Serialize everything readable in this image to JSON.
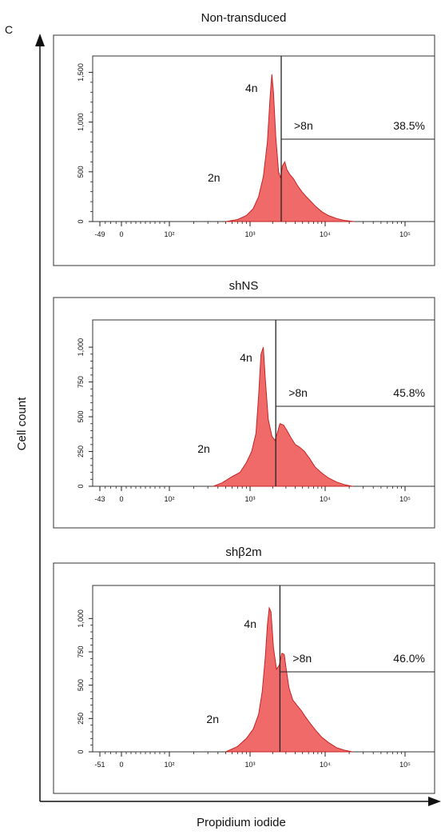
{
  "panel_letter": "C",
  "y_axis_title": "Cell count",
  "x_axis_title": "Propidium iodide",
  "colors": {
    "fill": "#f06a6a",
    "stroke": "#c42424",
    "frame": "#333333"
  },
  "chart_data": [
    {
      "type": "area",
      "title": "Non-transduced",
      "x_scale": "logicle",
      "x_tick_labels": [
        "-49",
        "0",
        "10²",
        "10³",
        "10⁴",
        "10⁵"
      ],
      "y_tick_labels": [
        "0",
        "500",
        "1,000",
        "1,500"
      ],
      "ylim": [
        0,
        1600
      ],
      "annotations": {
        "peak_2n": "2n",
        "peak_4n": "4n",
        "gate_label": ">8n",
        "gate_percent": "38.5%"
      },
      "gate_min_x": 2600,
      "x": [
        500,
        700,
        900,
        1100,
        1300,
        1500,
        1700,
        1850,
        1950,
        2050,
        2200,
        2400,
        2550,
        2700,
        2900,
        3100,
        3400,
        3800,
        4300,
        4900,
        5600,
        6500,
        7500,
        9000,
        11000,
        14000,
        18000,
        23000
      ],
      "y": [
        0,
        20,
        60,
        130,
        250,
        450,
        800,
        1250,
        1480,
        1300,
        850,
        500,
        440,
        560,
        600,
        520,
        470,
        430,
        360,
        300,
        250,
        200,
        150,
        100,
        60,
        30,
        10,
        0
      ]
    },
    {
      "type": "area",
      "title": "shNS",
      "x_scale": "logicle",
      "x_tick_labels": [
        "-43",
        "0",
        "10²",
        "10³",
        "10⁴",
        "10⁵"
      ],
      "y_tick_labels": [
        "0",
        "250",
        "500",
        "750",
        "1,000"
      ],
      "ylim": [
        0,
        1150
      ],
      "annotations": {
        "peak_2n": "2n",
        "peak_4n": "4n",
        "gate_label": ">8n",
        "gate_percent": "45.8%"
      },
      "gate_min_x": 2200,
      "x": [
        350,
        450,
        600,
        750,
        900,
        1050,
        1200,
        1300,
        1400,
        1500,
        1600,
        1750,
        1950,
        2150,
        2300,
        2500,
        2800,
        3100,
        3500,
        4000,
        4600,
        5300,
        6200,
        7300,
        8800,
        11000,
        14000,
        18000,
        22000
      ],
      "y": [
        0,
        25,
        70,
        100,
        170,
        250,
        380,
        650,
        950,
        1000,
        760,
        480,
        360,
        330,
        380,
        450,
        440,
        400,
        350,
        300,
        280,
        250,
        200,
        140,
        100,
        60,
        30,
        10,
        0
      ]
    },
    {
      "type": "area",
      "title": "shβ2m",
      "x_scale": "logicle",
      "x_tick_labels": [
        "-51",
        "0",
        "10²",
        "10³",
        "10⁴",
        "10⁵"
      ],
      "y_tick_labels": [
        "0",
        "250",
        "500",
        "750",
        "1,000"
      ],
      "ylim": [
        0,
        1200
      ],
      "annotations": {
        "peak_2n": "2n",
        "peak_4n": "4n",
        "gate_label": ">8n",
        "gate_percent": "46.0%"
      },
      "gate_min_x": 2500,
      "x": [
        500,
        700,
        900,
        1100,
        1300,
        1450,
        1600,
        1700,
        1800,
        1900,
        2050,
        2250,
        2450,
        2650,
        2850,
        3050,
        3300,
        3700,
        4200,
        4800,
        5500,
        6400,
        7500,
        9000,
        11000,
        14000,
        18000,
        22000
      ],
      "y": [
        0,
        40,
        100,
        170,
        280,
        450,
        720,
        950,
        1080,
        1050,
        780,
        620,
        650,
        740,
        730,
        610,
        480,
        390,
        350,
        310,
        260,
        210,
        160,
        110,
        70,
        30,
        10,
        0
      ]
    }
  ]
}
